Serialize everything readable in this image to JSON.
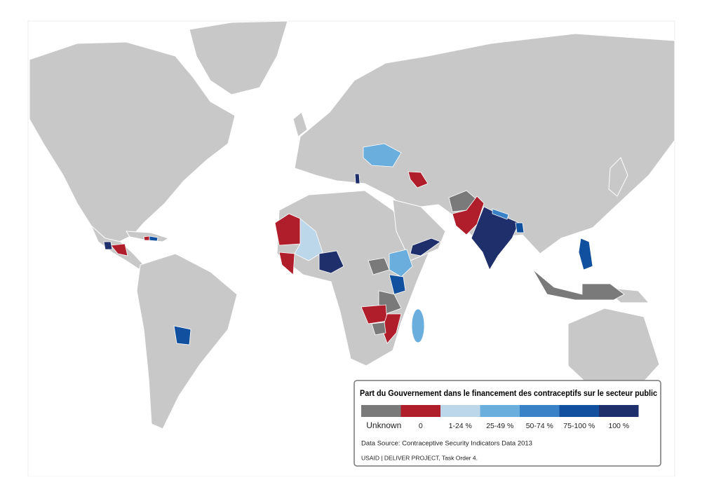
{
  "legend": {
    "title": "Part du Gouvernement dans le financement des contraceptifs sur le secteur public",
    "categories": [
      {
        "label": "Unknown",
        "color": "#7a7a7a"
      },
      {
        "label": "0",
        "color": "#b01e2c"
      },
      {
        "label": "1-24 %",
        "color": "#bcd6ea"
      },
      {
        "label": "25-49 %",
        "color": "#6aaedd"
      },
      {
        "label": "50-74 %",
        "color": "#3a82c8"
      },
      {
        "label": "75-100 %",
        "color": "#10509e"
      },
      {
        "label": "100 %",
        "color": "#1f2f6b"
      }
    ],
    "source": "Data Source: Contraceptive Security Indicators Data 2013",
    "credit": "USAID | DELIVER PROJECT, Task Order 4."
  }
}
